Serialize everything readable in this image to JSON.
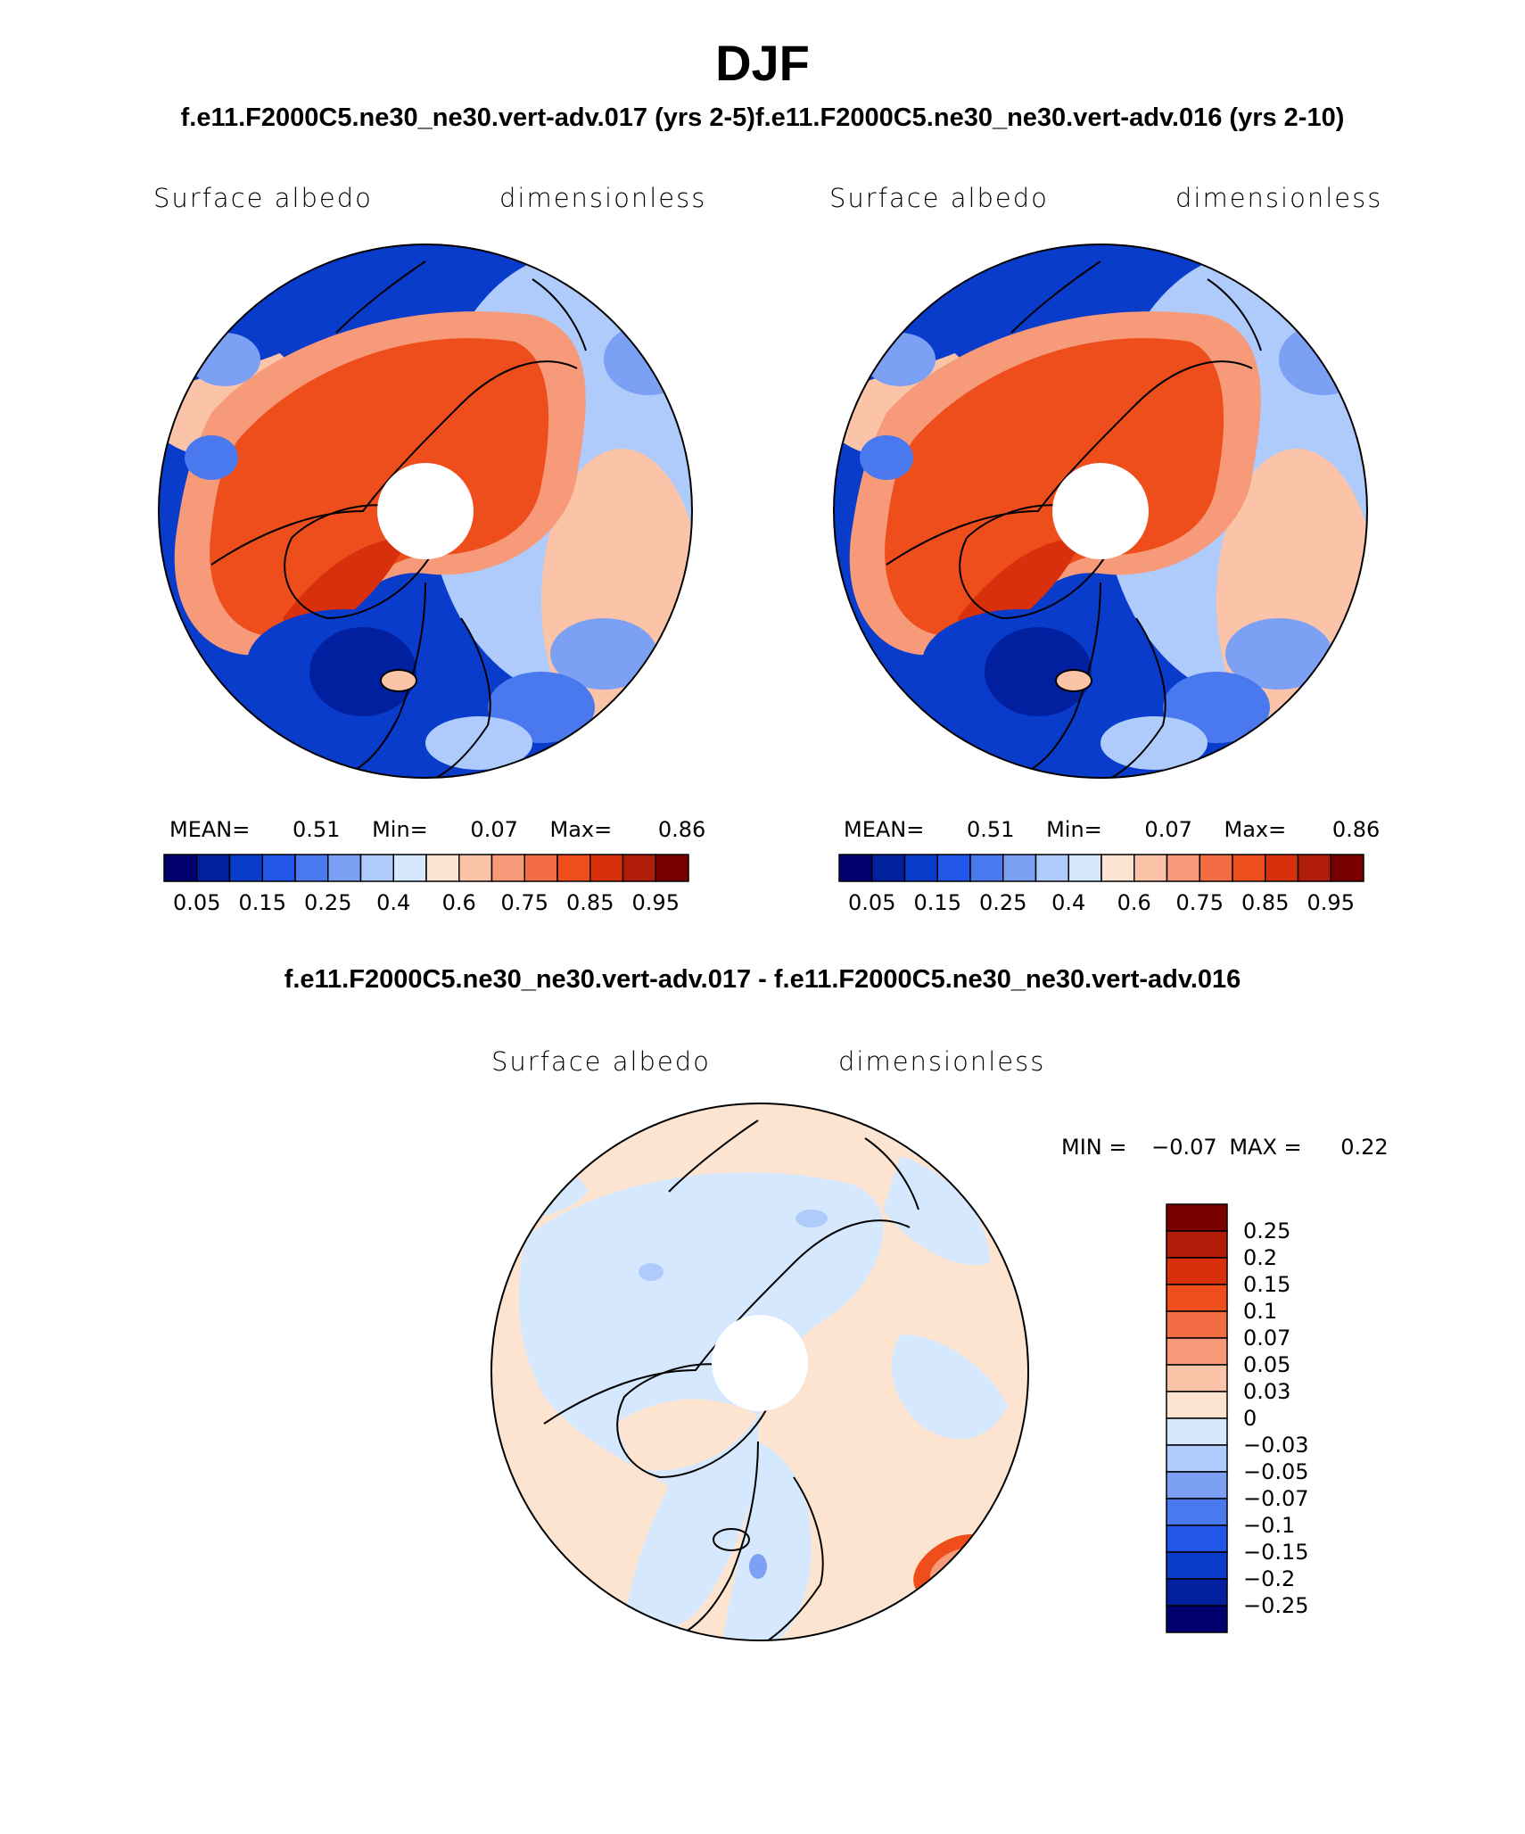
{
  "figure": {
    "title": "DJF",
    "subtitle_left": "f.e11.F2000C5.ne30_ne30.vert-adv.017 (yrs 2-5)",
    "subtitle_right": "f.e11.F2000C5.ne30_ne30.vert-adv.016 (yrs 2-10)",
    "diff_title": "f.e11.F2000C5.ne30_ne30.vert-adv.017 - f.e11.F2000C5.ne30_ne30.vert-adv.016"
  },
  "colors": {
    "abs_scale": [
      "#00006e",
      "#0020a0",
      "#0a3ccc",
      "#2256e8",
      "#4a78ee",
      "#7ca0f4",
      "#aecbfb",
      "#d6e8fd",
      "#fde4d0",
      "#fbc4a8",
      "#f79a7a",
      "#f26c44",
      "#ee4d1c",
      "#d8300c",
      "#b01c08",
      "#7a0000"
    ],
    "diff_scale": [
      "#00006e",
      "#0020a0",
      "#0a3ccc",
      "#2256e8",
      "#4a78ee",
      "#7ca0f4",
      "#aecbfb",
      "#d6e8fd",
      "#fde4d0",
      "#fbc4a8",
      "#f79a7a",
      "#f26c44",
      "#ee4d1c",
      "#d8300c",
      "#b01c08",
      "#7a0000"
    ]
  },
  "chart_data": [
    {
      "type": "heatmap",
      "panel": "left",
      "title": "Surface albedo",
      "units": "dimensionless",
      "projection": "north polar stereographic",
      "stats": {
        "mean_label": "MEAN=",
        "mean": "0.51",
        "min_label": "Min=",
        "min": "0.07",
        "max_label": "Max=",
        "max": "0.86"
      },
      "colorbar_ticks": [
        "0.05",
        "0.15",
        "0.25",
        "0.4",
        "0.6",
        "0.75",
        "0.85",
        "0.95"
      ]
    },
    {
      "type": "heatmap",
      "panel": "right",
      "title": "Surface albedo",
      "units": "dimensionless",
      "projection": "north polar stereographic",
      "stats": {
        "mean_label": "MEAN=",
        "mean": "0.51",
        "min_label": "Min=",
        "min": "0.07",
        "max_label": "Max=",
        "max": "0.86"
      },
      "colorbar_ticks": [
        "0.05",
        "0.15",
        "0.25",
        "0.4",
        "0.6",
        "0.75",
        "0.85",
        "0.95"
      ]
    },
    {
      "type": "heatmap",
      "panel": "difference",
      "title": "Surface albedo",
      "units": "dimensionless",
      "projection": "north polar stereographic",
      "stats": {
        "min_label": "MIN =",
        "min": "−0.07",
        "max_label": "MAX =",
        "max": "0.22"
      },
      "colorbar_ticks": [
        "0.25",
        "0.2",
        "0.15",
        "0.1",
        "0.07",
        "0.05",
        "0.03",
        "0",
        "−0.03",
        "−0.05",
        "−0.07",
        "−0.1",
        "−0.15",
        "−0.2",
        "−0.25"
      ]
    }
  ]
}
